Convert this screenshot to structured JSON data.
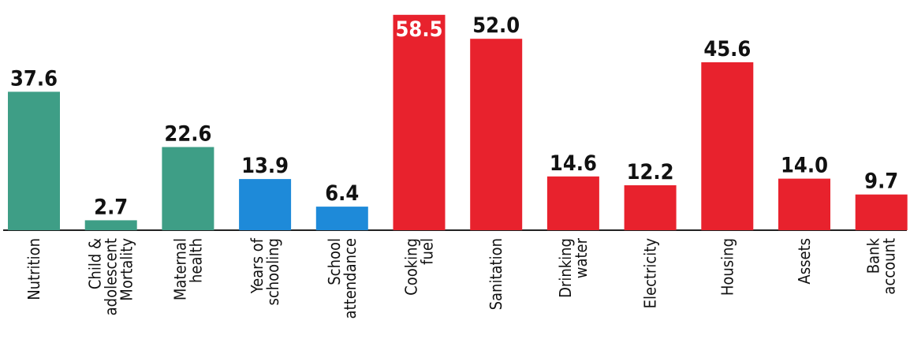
{
  "chart_data": {
    "type": "bar",
    "title": "",
    "xlabel": "",
    "ylabel": "",
    "ylim": [
      0,
      60
    ],
    "grid": false,
    "legend": "none",
    "colors": {
      "health": "#3e9e86",
      "education": "#1e8ad9",
      "living_standards": "#e8222d"
    },
    "categories": [
      [
        "Nutrition"
      ],
      [
        "Child &",
        "adolescent",
        "Mortality"
      ],
      [
        "Maternal",
        "health"
      ],
      [
        "Years of",
        "schooling"
      ],
      [
        "School",
        "attendance"
      ],
      [
        "Cooking",
        "fuel"
      ],
      [
        "Sanitation"
      ],
      [
        "Drinking",
        "water"
      ],
      [
        "Electricity"
      ],
      [
        "Housing"
      ],
      [
        "Assets"
      ],
      [
        "Bank",
        "account"
      ]
    ],
    "values": [
      37.6,
      2.7,
      22.6,
      13.9,
      6.4,
      58.5,
      52.0,
      14.6,
      12.2,
      45.6,
      14.0,
      9.7
    ],
    "value_labels": [
      "37.6",
      "2.7",
      "22.6",
      "13.9",
      "6.4",
      "58.5",
      "52.0",
      "14.6",
      "12.2",
      "45.6",
      "14.0",
      "9.7"
    ],
    "groups": [
      "health",
      "health",
      "health",
      "education",
      "education",
      "living_standards",
      "living_standards",
      "living_standards",
      "living_standards",
      "living_standards",
      "living_standards",
      "living_standards"
    ]
  }
}
